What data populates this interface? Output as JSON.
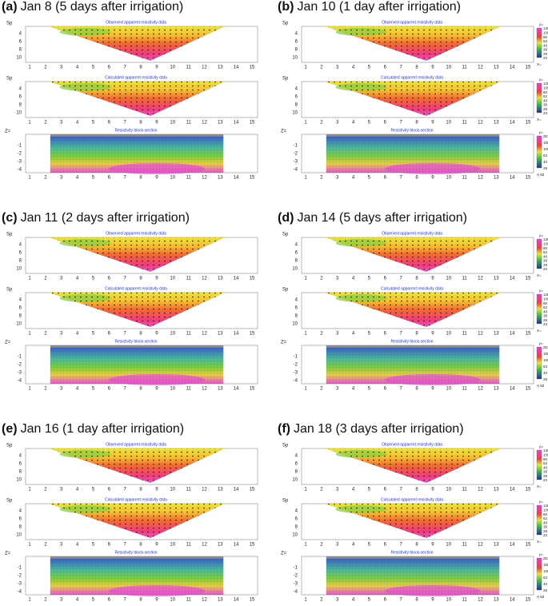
{
  "panels": [
    {
      "label": "(a)",
      "title": "Jan 8 (5 days after irrigation)"
    },
    {
      "label": "(b)",
      "title": "Jan 10 (1 day after irrigation)"
    },
    {
      "label": "(c)",
      "title": "Jan 11 (2 days after irrigation)"
    },
    {
      "label": "(d)",
      "title": "Jan 14 (5 days after irrigation)"
    },
    {
      "label": "(e)",
      "title": "Jan 16 (1 day after irrigation)"
    },
    {
      "label": "(f)",
      "title": "Jan 18 (3 days after irrigation)"
    }
  ],
  "subplot_titles": [
    "Observed apparent resistivity data",
    "Calculated apparent resistivity data",
    "Resistivity block-section"
  ],
  "x_ticks": [
    1,
    2,
    3,
    4,
    5,
    6,
    7,
    8,
    9,
    10,
    11,
    12,
    13,
    14,
    15
  ],
  "pseudo_y_label": "Sp",
  "pseudo_y_ticks": [
    4,
    6,
    8,
    10
  ],
  "block_y_label": "Z=",
  "block_y_ticks": [
    -1,
    -2,
    -3,
    -4
  ],
  "x_axis_label": "X=",
  "rho_label": "ρ=",
  "pseudo_scale": [
    130,
    100,
    80,
    62,
    48,
    38,
    29,
    23
  ],
  "block_scale": [
    251,
    155,
    100,
    63,
    40,
    25
  ],
  "block_scale_footer": "X 60"
}
